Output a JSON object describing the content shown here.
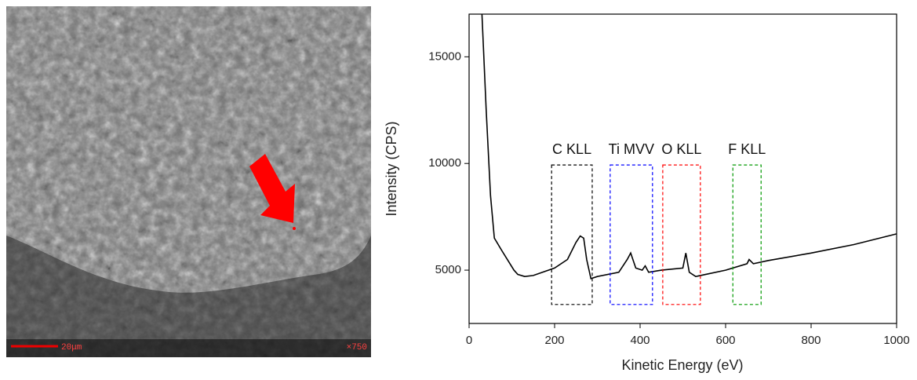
{
  "image": {
    "scale_bar": "20μm",
    "magnification": "×750"
  },
  "chart_data": {
    "type": "line",
    "xlabel": "Kinetic Energy (eV)",
    "ylabel": "Intensity (CPS)",
    "xlim": [
      0,
      1000
    ],
    "xticks": [
      0,
      200,
      400,
      600,
      800,
      1000
    ],
    "ylim": [
      2500,
      17000
    ],
    "yticks": [
      5000,
      10000,
      15000
    ],
    "series": [
      {
        "color": "#000000",
        "x": [
          30,
          40,
          50,
          59,
          77,
          105,
          114,
          130,
          150,
          200,
          230,
          250,
          260,
          268,
          275,
          285,
          300,
          350,
          370,
          378,
          390,
          405,
          412,
          420,
          450,
          500,
          507,
          515,
          530,
          600,
          650,
          655,
          665,
          700,
          800,
          900,
          1000
        ],
        "values": [
          17000,
          12500,
          8500,
          6500,
          5900,
          5000,
          4800,
          4700,
          4750,
          5100,
          5500,
          6300,
          6600,
          6500,
          5500,
          4600,
          4700,
          4900,
          5500,
          5800,
          5100,
          5000,
          5200,
          4900,
          5000,
          5100,
          5800,
          4900,
          4700,
          5000,
          5300,
          5500,
          5300,
          5450,
          5800,
          6200,
          6700
        ]
      }
    ],
    "annotations": [
      {
        "label": "C KLL",
        "color": "#000000",
        "x_range": [
          193,
          288
        ],
        "y_range": [
          3390,
          9930
        ]
      },
      {
        "label": "Ti MVV",
        "color": "#0000ff",
        "x_range": [
          330,
          429
        ],
        "y_range": [
          3390,
          9930
        ]
      },
      {
        "label": "O KLL",
        "color": "#ff0000",
        "x_range": [
          453,
          541
        ],
        "y_range": [
          3390,
          9930
        ]
      },
      {
        "label": "F KLL",
        "color": "#009900",
        "x_range": [
          617,
          683
        ],
        "y_range": [
          3390,
          9930
        ]
      }
    ]
  }
}
